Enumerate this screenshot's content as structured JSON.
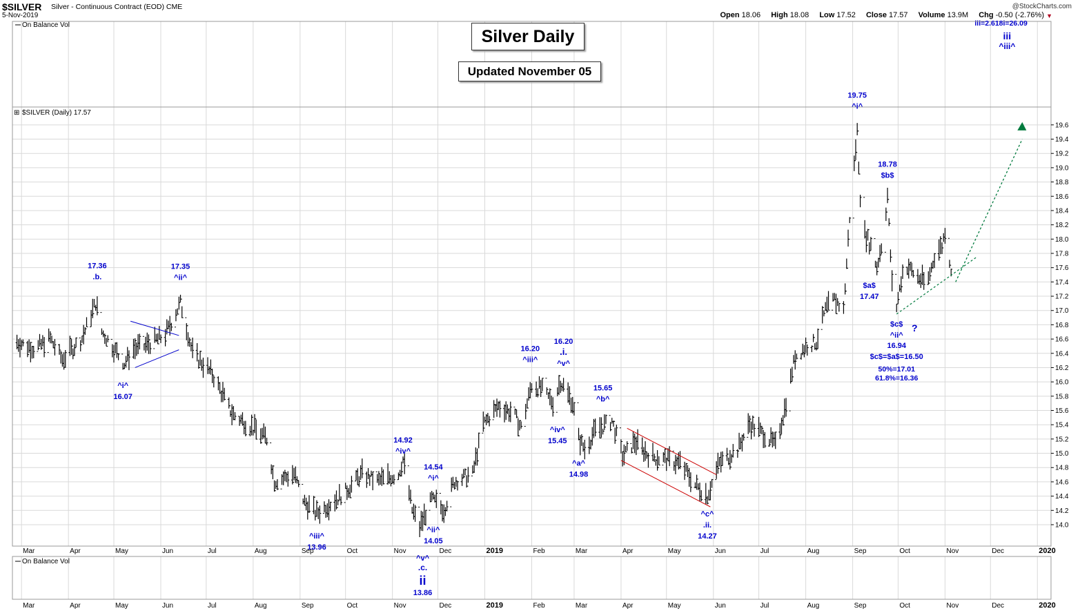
{
  "header": {
    "symbol": "$SILVER",
    "description": "Silver - Continuous Contract (EOD)",
    "exchange": "CME",
    "date": "5-Nov-2019",
    "source": "@StockCharts.com",
    "open_label": "Open",
    "open": "18.06",
    "high_label": "High",
    "high": "18.08",
    "low_label": "Low",
    "low": "17.52",
    "close_label": "Close",
    "close": "17.57",
    "volume_label": "Volume",
    "volume": "13.9M",
    "chg_label": "Chg",
    "chg": "-0.50 (-2.76%)"
  },
  "title_box": "Silver Daily",
  "subtitle_box": "Updated November 05",
  "panels": {
    "top_indicator": "On Balance Vol",
    "price_legend": "$SILVER (Daily) 17.57",
    "bottom_indicator": "On Balance Vol"
  },
  "chart_data": {
    "type": "ohlc",
    "title": "Silver Daily",
    "ylim": [
      13.7,
      19.85
    ],
    "y_ticks": [
      14.0,
      14.2,
      14.4,
      14.6,
      14.8,
      15.0,
      15.2,
      15.4,
      15.6,
      15.8,
      16.0,
      16.2,
      16.4,
      16.6,
      16.8,
      17.0,
      17.2,
      17.4,
      17.6,
      17.8,
      18.0,
      18.2,
      18.4,
      18.6,
      18.8,
      19.0,
      19.2,
      19.4,
      19.6
    ],
    "x_range": [
      "2018-02-23",
      "2020-01-10"
    ],
    "x_ticks": [
      {
        "label": "Mar",
        "date": "2018-03-01"
      },
      {
        "label": "Apr",
        "date": "2018-04-01"
      },
      {
        "label": "May",
        "date": "2018-05-01"
      },
      {
        "label": "Jun",
        "date": "2018-06-01"
      },
      {
        "label": "Jul",
        "date": "2018-07-01"
      },
      {
        "label": "Aug",
        "date": "2018-08-01"
      },
      {
        "label": "Sep",
        "date": "2018-09-01"
      },
      {
        "label": "Oct",
        "date": "2018-10-01"
      },
      {
        "label": "Nov",
        "date": "2018-11-01"
      },
      {
        "label": "Dec",
        "date": "2018-12-01"
      },
      {
        "label": "2019",
        "date": "2019-01-01",
        "bold": true
      },
      {
        "label": "Feb",
        "date": "2019-02-01"
      },
      {
        "label": "Mar",
        "date": "2019-03-01"
      },
      {
        "label": "Apr",
        "date": "2019-04-01"
      },
      {
        "label": "May",
        "date": "2019-05-01"
      },
      {
        "label": "Jun",
        "date": "2019-06-01"
      },
      {
        "label": "Jul",
        "date": "2019-07-01"
      },
      {
        "label": "Aug",
        "date": "2019-08-01"
      },
      {
        "label": "Sep",
        "date": "2019-09-01"
      },
      {
        "label": "Oct",
        "date": "2019-10-01"
      },
      {
        "label": "Nov",
        "date": "2019-11-01"
      },
      {
        "label": "Dec",
        "date": "2019-12-01"
      },
      {
        "label": "2020",
        "date": "2020-01-01",
        "bold": true
      }
    ],
    "price_path": [
      [
        "2018-02-26",
        16.55
      ],
      [
        "2018-03-10",
        16.45
      ],
      [
        "2018-03-20",
        16.6
      ],
      [
        "2018-03-28",
        16.3
      ],
      [
        "2018-04-10",
        16.6
      ],
      [
        "2018-04-19",
        17.1
      ],
      [
        "2018-04-23",
        16.7
      ],
      [
        "2018-05-08",
        16.25
      ],
      [
        "2018-05-14",
        16.45
      ],
      [
        "2018-05-22",
        16.5
      ],
      [
        "2018-06-04",
        16.65
      ],
      [
        "2018-06-14",
        17.1
      ],
      [
        "2018-06-22",
        16.4
      ],
      [
        "2018-07-05",
        16.1
      ],
      [
        "2018-07-18",
        15.55
      ],
      [
        "2018-07-28",
        15.4
      ],
      [
        "2018-08-10",
        15.2
      ],
      [
        "2018-08-15",
        14.6
      ],
      [
        "2018-08-28",
        14.7
      ],
      [
        "2018-09-04",
        14.3
      ],
      [
        "2018-09-12",
        14.15
      ],
      [
        "2018-09-25",
        14.35
      ],
      [
        "2018-10-03",
        14.5
      ],
      [
        "2018-10-12",
        14.7
      ],
      [
        "2018-10-22",
        14.6
      ],
      [
        "2018-11-05",
        14.7
      ],
      [
        "2018-11-08",
        14.9
      ],
      [
        "2018-11-14",
        14.2
      ],
      [
        "2018-11-19",
        13.95
      ],
      [
        "2018-11-27",
        14.35
      ],
      [
        "2018-12-05",
        14.2
      ],
      [
        "2018-12-12",
        14.6
      ],
      [
        "2018-12-24",
        14.7
      ],
      [
        "2018-12-31",
        15.4
      ],
      [
        "2019-01-10",
        15.65
      ],
      [
        "2019-01-20",
        15.55
      ],
      [
        "2019-01-25",
        15.35
      ],
      [
        "2019-02-01",
        15.95
      ],
      [
        "2019-02-07",
        15.9
      ],
      [
        "2019-02-15",
        15.7
      ],
      [
        "2019-02-20",
        16.0
      ],
      [
        "2019-02-28",
        15.7
      ],
      [
        "2019-03-04",
        15.2
      ],
      [
        "2019-03-08",
        15.05
      ],
      [
        "2019-03-15",
        15.3
      ],
      [
        "2019-03-26",
        15.45
      ],
      [
        "2019-04-02",
        14.95
      ],
      [
        "2019-04-10",
        15.15
      ],
      [
        "2019-04-20",
        14.95
      ],
      [
        "2019-05-01",
        14.9
      ],
      [
        "2019-05-10",
        14.85
      ],
      [
        "2019-05-20",
        14.55
      ],
      [
        "2019-05-28",
        14.4
      ],
      [
        "2019-06-05",
        14.85
      ],
      [
        "2019-06-17",
        15.05
      ],
      [
        "2019-06-25",
        15.4
      ],
      [
        "2019-07-05",
        15.25
      ],
      [
        "2019-07-12",
        15.1
      ],
      [
        "2019-07-18",
        15.6
      ],
      [
        "2019-07-25",
        16.35
      ],
      [
        "2019-08-02",
        16.5
      ],
      [
        "2019-08-08",
        16.55
      ],
      [
        "2019-08-14",
        17.0
      ],
      [
        "2019-08-20",
        17.15
      ],
      [
        "2019-08-26",
        17.0
      ],
      [
        "2019-08-30",
        18.3
      ],
      [
        "2019-09-04",
        19.5
      ],
      [
        "2019-09-07",
        18.15
      ],
      [
        "2019-09-13",
        17.9
      ],
      [
        "2019-09-17",
        17.6
      ],
      [
        "2019-09-21",
        18.0
      ],
      [
        "2019-09-24",
        18.6
      ],
      [
        "2019-09-27",
        17.35
      ],
      [
        "2019-09-30",
        17.05
      ],
      [
        "2019-10-05",
        17.65
      ],
      [
        "2019-10-12",
        17.5
      ],
      [
        "2019-10-20",
        17.35
      ],
      [
        "2019-10-25",
        17.75
      ],
      [
        "2019-10-30",
        17.9
      ],
      [
        "2019-11-01",
        18.1
      ],
      [
        "2019-11-05",
        17.57
      ]
    ],
    "annotations": [
      {
        "date": "2018-04-20",
        "price": 17.36,
        "lines": [
          "17.36",
          ".b."
        ],
        "pos": "above"
      },
      {
        "date": "2018-06-14",
        "price": 17.35,
        "lines": [
          "17.35",
          "^ii^"
        ],
        "pos": "above"
      },
      {
        "date": "2018-05-07",
        "price": 16.07,
        "lines": [
          "^i^",
          "16.07"
        ],
        "pos": "below"
      },
      {
        "date": "2018-09-12",
        "price": 13.96,
        "lines": [
          "^iii^",
          "13.96"
        ],
        "pos": "below"
      },
      {
        "date": "2018-11-08",
        "price": 14.92,
        "lines": [
          "14.92",
          "^iv^"
        ],
        "pos": "above"
      },
      {
        "date": "2018-11-28",
        "price": 14.54,
        "lines": [
          "14.54",
          "^i^"
        ],
        "pos": "above"
      },
      {
        "date": "2018-11-28",
        "price": 14.05,
        "lines": [
          "^ii^",
          "14.05"
        ],
        "pos": "below"
      },
      {
        "date": "2019-01-31",
        "price": 16.2,
        "lines": [
          "16.20",
          "^iii^"
        ],
        "pos": "above"
      },
      {
        "date": "2019-02-18",
        "price": 15.45,
        "lines": [
          "^iv^",
          "15.45"
        ],
        "pos": "below"
      },
      {
        "date": "2019-03-04",
        "price": 14.98,
        "lines": [
          "^a^",
          "14.98"
        ],
        "pos": "below"
      },
      {
        "date": "2019-03-20",
        "price": 15.65,
        "lines": [
          "15.65",
          "^b^"
        ],
        "pos": "above"
      },
      {
        "date": "2019-05-28",
        "price": 14.27,
        "lines": [
          "^c^",
          ".ii.",
          "14.27"
        ],
        "pos": "below"
      },
      {
        "date": "2019-09-04",
        "price": 19.75,
        "lines": [
          "19.75",
          "^i^"
        ],
        "pos": "above"
      },
      {
        "date": "2019-09-24",
        "price": 18.78,
        "lines": [
          "18.78",
          "$b$"
        ],
        "pos": "above"
      },
      {
        "date": "2019-09-12",
        "price": 17.47,
        "lines": [
          "$a$",
          "17.47"
        ],
        "pos": "below"
      }
    ],
    "v_label": {
      "lines": [
        "16.20",
        ".i.",
        "^v^"
      ]
    },
    "big_ii_label": {
      "lines": [
        "^v^",
        ".c.",
        "ii",
        "13.86"
      ]
    },
    "c_label": {
      "lines": [
        "$c$",
        "^ii^",
        "16.94"
      ],
      "question": "?"
    },
    "projection_notes": [
      "$c$=$a$=16.50",
      "50%=17.01",
      "61.8%=16.36"
    ],
    "target_note": "iii=2.618i=26.09",
    "target_wave": [
      "iii",
      "^iii^"
    ],
    "colors": {
      "bars": "#000000",
      "labels": "#0000cc",
      "triangle": "#0000cc",
      "channel": "#cc0000",
      "trend": "#007a3d",
      "grid": "#d9d9d9"
    }
  }
}
